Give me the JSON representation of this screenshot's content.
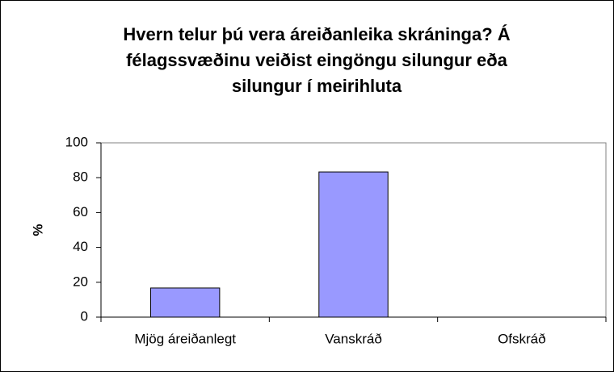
{
  "chart_data": {
    "type": "bar",
    "title": [
      "Hvern telur þú vera áreiðanleika skráninga? Á",
      "félagssvæðinu veiðist eingöngu silungur eða",
      "silungur í meirihluta"
    ],
    "ylabel": "%",
    "categories": [
      "Mjög áreiðanlegt",
      "Vanskráð",
      "Ofskráð"
    ],
    "values": [
      16.7,
      83.3,
      0
    ],
    "color": "#9999ff",
    "ylim": [
      0,
      100
    ],
    "yticks": [
      0,
      20,
      40,
      60,
      80,
      100
    ],
    "grid": false
  }
}
